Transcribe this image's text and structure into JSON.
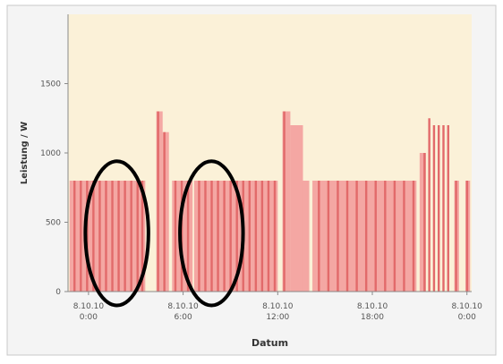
{
  "chart_data": {
    "type": "bar",
    "title": "",
    "xlabel": "Datum",
    "ylabel": "Leistung / W",
    "ylim": [
      0,
      2000
    ],
    "yticks": [
      0,
      500,
      1000,
      1500
    ],
    "ytick_labels": [
      "0",
      "500",
      "1000",
      "1500"
    ],
    "xlim_hours": [
      -1.3,
      24.3
    ],
    "xticks": [
      {
        "date": "8.10.10",
        "time": "0:00"
      },
      {
        "date": "8.10.10",
        "time": "6:00"
      },
      {
        "date": "8.10.10",
        "time": "12:00"
      },
      {
        "date": "8.10.10",
        "time": "18:00"
      },
      {
        "date": "8.10.10",
        "time": "0:00"
      }
    ],
    "xtick_hours": [
      0,
      6,
      12,
      18,
      24
    ],
    "grid": false,
    "legend": "none",
    "colors": {
      "plot_background": "#fbf1d8",
      "bar_fill": "#f29a9a",
      "bar_stroke": "#e26a6a",
      "annotation": "#000000"
    },
    "annotations": [
      {
        "type": "ellipse",
        "center_hour": 1.8,
        "center_value": 420,
        "hour_radius": 2.0,
        "value_radius": 520
      },
      {
        "type": "ellipse",
        "center_hour": 7.8,
        "center_value": 420,
        "hour_radius": 2.0,
        "value_radius": 520
      }
    ],
    "blocks": [
      {
        "start": -1.2,
        "end": 3.6,
        "value": 800
      },
      {
        "start": 4.3,
        "end": 4.7,
        "value": 1300
      },
      {
        "start": 4.7,
        "end": 5.1,
        "value": 1150
      },
      {
        "start": 5.3,
        "end": 6.6,
        "value": 800
      },
      {
        "start": 6.7,
        "end": 12.0,
        "value": 800
      },
      {
        "start": 12.3,
        "end": 12.8,
        "value": 1300
      },
      {
        "start": 12.8,
        "end": 13.6,
        "value": 1200
      },
      {
        "start": 13.6,
        "end": 14.0,
        "value": 800
      },
      {
        "start": 14.2,
        "end": 20.8,
        "value": 800
      },
      {
        "start": 21.0,
        "end": 21.4,
        "value": 1000
      },
      {
        "start": 23.2,
        "end": 23.5,
        "value": 800
      },
      {
        "start": 23.9,
        "end": 24.2,
        "value": 800
      }
    ],
    "spikes": [
      {
        "x": -0.9,
        "value": 800
      },
      {
        "x": -0.5,
        "value": 800
      },
      {
        "x": -0.1,
        "value": 800
      },
      {
        "x": 0.3,
        "value": 800
      },
      {
        "x": 0.7,
        "value": 800
      },
      {
        "x": 1.1,
        "value": 800
      },
      {
        "x": 1.5,
        "value": 800
      },
      {
        "x": 1.9,
        "value": 800
      },
      {
        "x": 2.3,
        "value": 800
      },
      {
        "x": 2.7,
        "value": 800
      },
      {
        "x": 3.1,
        "value": 800
      },
      {
        "x": 3.4,
        "value": 800
      },
      {
        "x": 4.4,
        "value": 1300
      },
      {
        "x": 4.8,
        "value": 1150
      },
      {
        "x": 5.5,
        "value": 800
      },
      {
        "x": 5.9,
        "value": 800
      },
      {
        "x": 6.3,
        "value": 800
      },
      {
        "x": 7.0,
        "value": 800
      },
      {
        "x": 7.4,
        "value": 800
      },
      {
        "x": 7.8,
        "value": 800
      },
      {
        "x": 8.2,
        "value": 800
      },
      {
        "x": 8.6,
        "value": 800
      },
      {
        "x": 9.0,
        "value": 800
      },
      {
        "x": 9.4,
        "value": 800
      },
      {
        "x": 9.8,
        "value": 800
      },
      {
        "x": 10.2,
        "value": 800
      },
      {
        "x": 10.6,
        "value": 800
      },
      {
        "x": 11.0,
        "value": 800
      },
      {
        "x": 11.4,
        "value": 800
      },
      {
        "x": 11.8,
        "value": 800
      },
      {
        "x": 12.4,
        "value": 1300
      },
      {
        "x": 14.6,
        "value": 800
      },
      {
        "x": 15.2,
        "value": 800
      },
      {
        "x": 15.8,
        "value": 800
      },
      {
        "x": 16.4,
        "value": 800
      },
      {
        "x": 17.0,
        "value": 800
      },
      {
        "x": 17.6,
        "value": 800
      },
      {
        "x": 18.2,
        "value": 800
      },
      {
        "x": 18.8,
        "value": 800
      },
      {
        "x": 19.4,
        "value": 800
      },
      {
        "x": 20.0,
        "value": 800
      },
      {
        "x": 20.6,
        "value": 800
      },
      {
        "x": 21.3,
        "value": 1000
      },
      {
        "x": 21.6,
        "value": 1250
      },
      {
        "x": 21.9,
        "value": 1200
      },
      {
        "x": 22.2,
        "value": 1200
      },
      {
        "x": 22.5,
        "value": 1200
      },
      {
        "x": 22.8,
        "value": 1200
      },
      {
        "x": 23.3,
        "value": 800
      },
      {
        "x": 24.0,
        "value": 800
      }
    ]
  }
}
